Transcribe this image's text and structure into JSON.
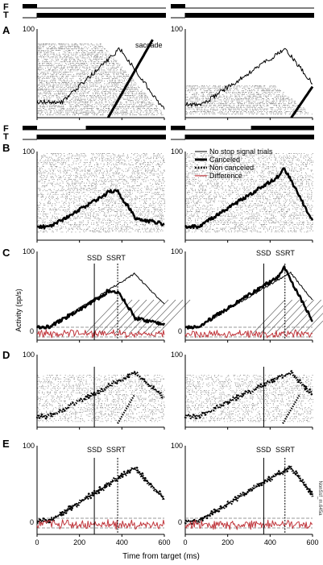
{
  "signal_labels": {
    "fixation": "F",
    "target": "T"
  },
  "panels": [
    "A",
    "B",
    "C",
    "D",
    "E"
  ],
  "annotations": {
    "saccade": "saccade",
    "ssd": "SSD",
    "ssrt": "SSRT"
  },
  "axes": {
    "xlabel": "Time from target (ms)",
    "ylabel_c": "Activity (sp/s)",
    "xticks": [
      "0",
      "200",
      "400",
      "600"
    ],
    "yticks": [
      "0",
      "100"
    ]
  },
  "legend": {
    "items": [
      "No stop signal trials",
      "Canceled",
      "Non canceled",
      "Difference"
    ],
    "colors": [
      "#000000",
      "#000000",
      "#000000",
      "#c0363c"
    ]
  },
  "side_label": "NonSsf_m.645a",
  "chart_data": {
    "type": "line",
    "xlim": [
      0,
      600
    ],
    "ylim": [
      0,
      100
    ],
    "ssd_ms": [
      270,
      370
    ],
    "ssrt_ms": [
      380,
      470
    ]
  }
}
